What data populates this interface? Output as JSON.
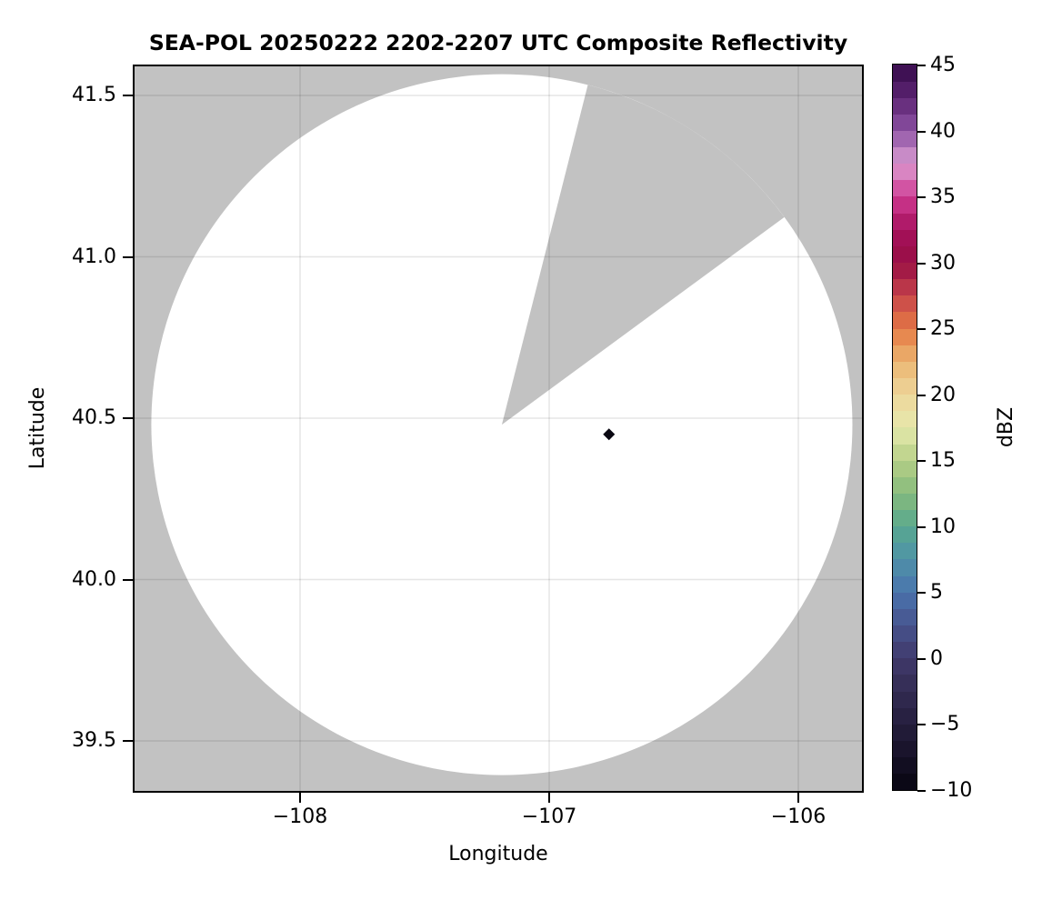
{
  "figure": {
    "title": "SEA-POL 20250222 2202-2207 UTC Composite Reflectivity",
    "xlabel": "Longitude",
    "ylabel": "Latitude",
    "colorbar_label": "dBZ",
    "background_color": "#ffffff",
    "no_data_color": "#c2c2c2",
    "coverage_color": "#ffffff",
    "grid_color": "rgba(0,0,0,0.10)"
  },
  "axes": {
    "x": {
      "label": "Longitude",
      "range": [
        -108.66,
        -105.74
      ],
      "ticks": [
        {
          "value": -108,
          "label": "−108"
        },
        {
          "value": -107,
          "label": "−107"
        },
        {
          "value": -106,
          "label": "−106"
        }
      ]
    },
    "y": {
      "label": "Latitude",
      "range": [
        39.35,
        41.59
      ],
      "ticks": [
        {
          "value": 41.5,
          "label": "41.5"
        },
        {
          "value": 41.0,
          "label": "41.0"
        },
        {
          "value": 40.5,
          "label": "40.5"
        },
        {
          "value": 40.0,
          "label": "40.0"
        },
        {
          "value": 39.5,
          "label": "39.5"
        }
      ]
    }
  },
  "colorbar": {
    "label": "dBZ",
    "min": -10,
    "max": 45,
    "band_step": 1.25,
    "ticks": [
      {
        "value": 45,
        "label": "45"
      },
      {
        "value": 40,
        "label": "40"
      },
      {
        "value": 35,
        "label": "35"
      },
      {
        "value": 30,
        "label": "30"
      },
      {
        "value": 25,
        "label": "25"
      },
      {
        "value": 20,
        "label": "20"
      },
      {
        "value": 15,
        "label": "15"
      },
      {
        "value": 10,
        "label": "10"
      },
      {
        "value": 5,
        "label": "5"
      },
      {
        "value": 0,
        "label": "0"
      },
      {
        "value": -5,
        "label": "−5"
      },
      {
        "value": -10,
        "label": "−10"
      }
    ],
    "palette_stops": [
      {
        "value": -10.0,
        "color": "#070510"
      },
      {
        "value": -7.5,
        "color": "#161127"
      },
      {
        "value": -5.0,
        "color": "#251e3c"
      },
      {
        "value": -2.5,
        "color": "#322b52"
      },
      {
        "value": 0.0,
        "color": "#403a6b"
      },
      {
        "value": 2.5,
        "color": "#47538d"
      },
      {
        "value": 5.0,
        "color": "#4a73ad"
      },
      {
        "value": 7.5,
        "color": "#4f92a8"
      },
      {
        "value": 10.0,
        "color": "#58a88e"
      },
      {
        "value": 12.5,
        "color": "#86bb7d"
      },
      {
        "value": 15.0,
        "color": "#b6cf86"
      },
      {
        "value": 17.5,
        "color": "#e6e9ac"
      },
      {
        "value": 20.0,
        "color": "#eed69b"
      },
      {
        "value": 22.5,
        "color": "#ebb671"
      },
      {
        "value": 25.0,
        "color": "#e57a45"
      },
      {
        "value": 27.5,
        "color": "#c6434a"
      },
      {
        "value": 30.0,
        "color": "#970e44"
      },
      {
        "value": 32.5,
        "color": "#a5105c"
      },
      {
        "value": 35.0,
        "color": "#cf3b93"
      },
      {
        "value": 37.5,
        "color": "#dc9ed2"
      },
      {
        "value": 40.0,
        "color": "#8d53a4"
      },
      {
        "value": 42.5,
        "color": "#5d2473"
      },
      {
        "value": 45.0,
        "color": "#350b49"
      }
    ]
  },
  "chart_data": {
    "type": "heatmap",
    "subtype": "radar_composite_reflectivity_ppi",
    "title": "SEA-POL 20250222 2202-2207 UTC Composite Reflectivity",
    "xlabel": "Longitude",
    "ylabel": "Latitude",
    "colorbar_label": "dBZ",
    "xlim": [
      -108.66,
      -105.74
    ],
    "ylim": [
      39.35,
      41.59
    ],
    "xticks": [
      -108,
      -107,
      -106
    ],
    "yticks": [
      41.5,
      41.0,
      40.5,
      40.0,
      39.5
    ],
    "grid": true,
    "value_range_dbz": [
      -10,
      45
    ],
    "legend_position": "right-colorbar",
    "radar": {
      "center_lon": -107.19,
      "center_lat": 40.48,
      "range_deg_lat": 1.086,
      "blocked_sector_azimuth_deg": [
        14.2,
        53.7
      ]
    },
    "echoes": [
      {
        "lon": -106.76,
        "lat": 40.45,
        "approx_dbz": -8,
        "color": "#0a0812",
        "marker_px": 13,
        "marker": "diamond"
      }
    ]
  }
}
